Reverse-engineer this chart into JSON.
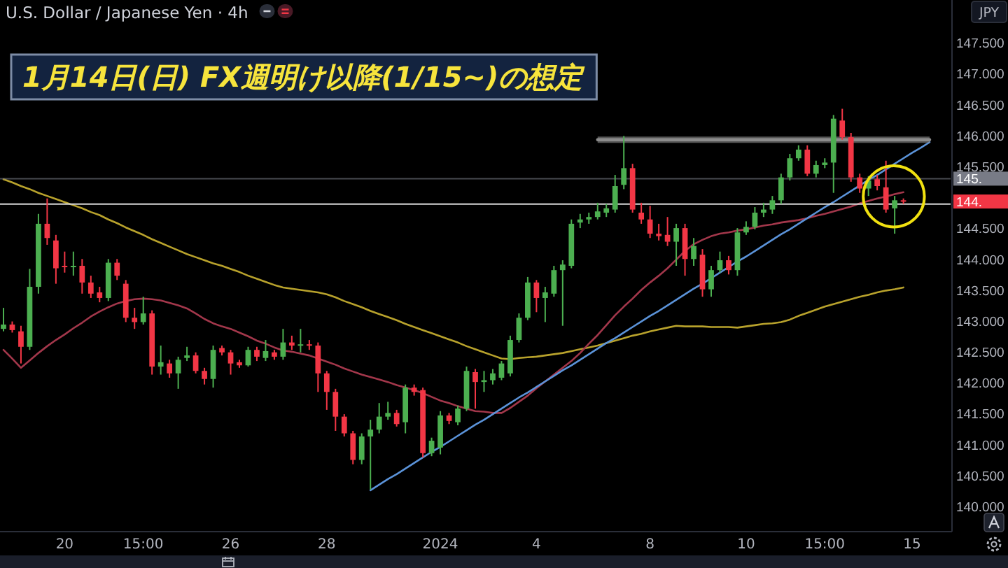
{
  "chart_data": {
    "type": "candlestick",
    "title": "1月14日(日) FX週明け以降(1/15~)の想定",
    "subtitle": "U.S. Dollar / Japanese Yen · 4h",
    "ylabel": "JPY",
    "categories": [
      null,
      null,
      null,
      null,
      null,
      null,
      null,
      "20",
      null,
      null,
      null,
      null,
      null,
      null,
      null,
      null,
      "15:00",
      null,
      null,
      null,
      null,
      null,
      null,
      null,
      null,
      null,
      "26",
      null,
      null,
      null,
      null,
      null,
      null,
      null,
      null,
      null,
      null,
      "28",
      null,
      null,
      null,
      null,
      null,
      null,
      null,
      null,
      null,
      null,
      null,
      null,
      "2024",
      null,
      null,
      null,
      null,
      null,
      null,
      null,
      null,
      null,
      null,
      "4",
      null,
      null,
      null,
      null,
      null,
      null,
      null,
      null,
      null,
      null,
      null,
      null,
      "8",
      null,
      null,
      null,
      null,
      null,
      null,
      null,
      null,
      null,
      null,
      "10",
      null,
      null,
      null,
      null,
      null,
      null,
      null,
      null,
      "15:00",
      null,
      null,
      null,
      null,
      null,
      null,
      null,
      null,
      null,
      "15",
      null,
      null,
      null,
      null
    ],
    "ohlc": [
      [
        142.88,
        143.22,
        142.84,
        142.95
      ],
      [
        142.95,
        143.0,
        142.82,
        142.86
      ],
      [
        142.84,
        142.93,
        142.32,
        142.59
      ],
      [
        142.59,
        143.85,
        142.54,
        143.56
      ],
      [
        143.56,
        144.74,
        143.45,
        144.58
      ],
      [
        144.58,
        144.99,
        144.24,
        144.35
      ],
      [
        144.31,
        144.4,
        143.61,
        143.86
      ],
      [
        143.9,
        144.13,
        143.79,
        143.88
      ],
      [
        143.88,
        144.13,
        143.74,
        143.9
      ],
      [
        143.9,
        144.01,
        143.45,
        143.63
      ],
      [
        143.63,
        143.74,
        143.38,
        143.45
      ],
      [
        143.47,
        143.56,
        143.31,
        143.38
      ],
      [
        143.38,
        144.01,
        143.33,
        143.95
      ],
      [
        143.95,
        144.01,
        143.67,
        143.74
      ],
      [
        143.61,
        143.67,
        142.99,
        143.06
      ],
      [
        143.06,
        143.22,
        142.88,
        142.99
      ],
      [
        142.99,
        143.4,
        142.95,
        143.13
      ],
      [
        143.13,
        143.18,
        142.14,
        142.27
      ],
      [
        142.27,
        142.61,
        142.14,
        142.34
      ],
      [
        142.32,
        142.38,
        142.09,
        142.16
      ],
      [
        142.16,
        142.43,
        141.91,
        142.38
      ],
      [
        142.41,
        142.59,
        142.36,
        142.45
      ],
      [
        142.45,
        142.5,
        142.16,
        142.2
      ],
      [
        142.2,
        142.25,
        141.98,
        142.07
      ],
      [
        142.07,
        142.61,
        141.93,
        142.54
      ],
      [
        142.57,
        142.61,
        142.45,
        142.5
      ],
      [
        142.5,
        142.54,
        142.14,
        142.32
      ],
      [
        142.34,
        142.38,
        142.25,
        142.29
      ],
      [
        142.29,
        142.59,
        142.27,
        142.54
      ],
      [
        142.54,
        142.59,
        142.36,
        142.43
      ],
      [
        142.41,
        142.7,
        142.36,
        142.52
      ],
      [
        142.5,
        142.54,
        142.38,
        142.43
      ],
      [
        142.43,
        142.88,
        142.38,
        142.66
      ],
      [
        142.66,
        142.77,
        142.54,
        142.61
      ],
      [
        142.61,
        142.88,
        142.5,
        142.63
      ],
      [
        142.63,
        142.7,
        142.54,
        142.61
      ],
      [
        142.61,
        142.66,
        141.86,
        142.16
      ],
      [
        142.16,
        142.2,
        141.57,
        141.86
      ],
      [
        141.86,
        141.91,
        141.23,
        141.46
      ],
      [
        141.46,
        141.5,
        141.14,
        141.19
      ],
      [
        141.19,
        141.23,
        140.69,
        140.76
      ],
      [
        140.76,
        141.19,
        140.69,
        141.14
      ],
      [
        141.14,
        141.41,
        140.28,
        141.25
      ],
      [
        141.25,
        141.68,
        141.19,
        141.46
      ],
      [
        141.46,
        141.7,
        141.41,
        141.52
      ],
      [
        141.52,
        141.57,
        141.3,
        141.34
      ],
      [
        141.37,
        141.98,
        141.19,
        141.93
      ],
      [
        141.93,
        141.98,
        141.8,
        141.86
      ],
      [
        141.89,
        141.93,
        140.8,
        140.87
      ],
      [
        140.87,
        141.12,
        140.82,
        141.07
      ],
      [
        140.96,
        141.55,
        140.85,
        141.48
      ],
      [
        141.48,
        141.52,
        141.34,
        141.39
      ],
      [
        141.37,
        141.64,
        141.32,
        141.59
      ],
      [
        141.59,
        142.27,
        141.55,
        142.2
      ],
      [
        142.18,
        142.23,
        141.59,
        142.02
      ],
      [
        142.02,
        142.2,
        141.86,
        142.05
      ],
      [
        142.05,
        142.23,
        141.98,
        142.16
      ],
      [
        142.09,
        142.36,
        142.05,
        142.32
      ],
      [
        142.16,
        142.77,
        142.11,
        142.7
      ],
      [
        142.7,
        143.13,
        142.66,
        143.06
      ],
      [
        143.06,
        143.72,
        143.02,
        143.63
      ],
      [
        143.63,
        143.67,
        143.15,
        143.38
      ],
      [
        143.38,
        143.56,
        142.99,
        143.47
      ],
      [
        143.45,
        143.9,
        143.4,
        143.83
      ],
      [
        143.83,
        143.99,
        142.93,
        143.92
      ],
      [
        143.9,
        144.65,
        143.86,
        144.58
      ],
      [
        144.6,
        144.74,
        144.51,
        144.65
      ],
      [
        144.65,
        144.76,
        144.58,
        144.69
      ],
      [
        144.69,
        144.92,
        144.65,
        144.78
      ],
      [
        144.76,
        144.9,
        144.69,
        144.83
      ],
      [
        144.81,
        145.37,
        144.76,
        145.19
      ],
      [
        145.21,
        146.0,
        145.14,
        145.48
      ],
      [
        145.48,
        145.55,
        144.76,
        144.81
      ],
      [
        144.76,
        144.92,
        144.58,
        144.65
      ],
      [
        144.65,
        144.87,
        144.35,
        144.42
      ],
      [
        144.42,
        144.58,
        144.31,
        144.38
      ],
      [
        144.4,
        144.69,
        144.22,
        144.29
      ],
      [
        144.29,
        144.58,
        143.9,
        144.51
      ],
      [
        144.51,
        144.58,
        143.74,
        144.01
      ],
      [
        144.01,
        144.35,
        143.9,
        144.22
      ],
      [
        144.08,
        144.17,
        143.4,
        143.52
      ],
      [
        143.52,
        143.9,
        143.4,
        143.83
      ],
      [
        143.83,
        144.13,
        143.79,
        143.99
      ],
      [
        143.99,
        144.06,
        143.76,
        143.83
      ],
      [
        143.83,
        144.51,
        143.74,
        144.44
      ],
      [
        144.44,
        144.62,
        144.4,
        144.53
      ],
      [
        144.53,
        144.85,
        144.49,
        144.76
      ],
      [
        144.76,
        144.92,
        144.69,
        144.81
      ],
      [
        144.81,
        145.03,
        144.74,
        144.96
      ],
      [
        144.96,
        145.39,
        144.9,
        145.33
      ],
      [
        145.33,
        145.71,
        145.28,
        145.64
      ],
      [
        145.64,
        145.85,
        145.6,
        145.78
      ],
      [
        145.78,
        145.85,
        145.35,
        145.39
      ],
      [
        145.39,
        145.6,
        145.33,
        145.53
      ],
      [
        145.53,
        145.64,
        145.48,
        145.57
      ],
      [
        145.57,
        146.34,
        145.08,
        146.28
      ],
      [
        146.25,
        146.44,
        145.94,
        145.98
      ],
      [
        145.98,
        146.05,
        145.26,
        145.33
      ],
      [
        145.33,
        145.39,
        145.08,
        145.15
      ],
      [
        145.15,
        145.35,
        145.03,
        145.28
      ],
      [
        145.3,
        145.37,
        145.12,
        145.19
      ],
      [
        145.17,
        145.6,
        144.76,
        144.81
      ],
      [
        144.83,
        145.03,
        144.42,
        144.96
      ],
      [
        144.96,
        144.99,
        144.9,
        144.94
      ],
      null,
      null,
      null,
      null,
      null
    ],
    "colors": [
      "#4caf50",
      "#f23645",
      "#f23645",
      "#4caf50",
      "#4caf50",
      "#f23645",
      "#f23645",
      "#f23645",
      "#4caf50",
      "#f23645",
      "#f23645",
      "#f23645",
      "#4caf50",
      "#f23645",
      "#f23645",
      "#f23645",
      "#4caf50",
      "#f23645",
      "#4caf50",
      "#f23645",
      "#4caf50",
      "#4caf50",
      "#f23645",
      "#f23645",
      "#4caf50",
      "#f23645",
      "#f23645",
      "#f23645",
      "#4caf50",
      "#f23645",
      "#4caf50",
      "#f23645",
      "#4caf50",
      "#f23645",
      "#4caf50",
      "#f23645",
      "#f23645",
      "#f23645",
      "#f23645",
      "#f23645",
      "#f23645",
      "#4caf50",
      "#4caf50",
      "#4caf50",
      "#4caf50",
      "#f23645",
      "#4caf50",
      "#f23645",
      "#f23645",
      "#4caf50",
      "#4caf50",
      "#f23645",
      "#4caf50",
      "#4caf50",
      "#f23645",
      "#4caf50",
      "#4caf50",
      "#4caf50",
      "#4caf50",
      "#4caf50",
      "#4caf50",
      "#f23645",
      "#4caf50",
      "#4caf50",
      "#4caf50",
      "#4caf50",
      "#4caf50",
      "#4caf50",
      "#4caf50",
      "#4caf50",
      "#4caf50",
      "#4caf50",
      "#f23645",
      "#f23645",
      "#f23645",
      "#f23645",
      "#f23645",
      "#4caf50",
      "#f23645",
      "#4caf50",
      "#f23645",
      "#4caf50",
      "#4caf50",
      "#f23645",
      "#4caf50",
      "#4caf50",
      "#4caf50",
      "#4caf50",
      "#4caf50",
      "#4caf50",
      "#4caf50",
      "#4caf50",
      "#f23645",
      "#4caf50",
      "#4caf50",
      "#4caf50",
      "#f23645",
      "#f23645",
      "#f23645",
      "#4caf50",
      "#f23645",
      "#f23645",
      "#4caf50",
      "#f23645",
      null,
      null,
      null,
      null,
      null
    ],
    "series": [
      {
        "type": "line",
        "color": "#b8a22c",
        "values": [
          145.3,
          145.25,
          145.19,
          145.14,
          145.08,
          145.03,
          144.98,
          144.93,
          144.88,
          144.83,
          144.77,
          144.72,
          144.65,
          144.59,
          144.52,
          144.46,
          144.4,
          144.33,
          144.27,
          144.21,
          144.15,
          144.09,
          144.04,
          143.99,
          143.94,
          143.9,
          143.85,
          143.8,
          143.74,
          143.69,
          143.64,
          143.59,
          143.55,
          143.53,
          143.51,
          143.49,
          143.47,
          143.44,
          143.39,
          143.33,
          143.28,
          143.23,
          143.17,
          143.12,
          143.07,
          143.02,
          142.96,
          142.91,
          142.86,
          142.81,
          142.76,
          142.71,
          142.66,
          142.6,
          142.55,
          142.5,
          142.45,
          142.4,
          142.39,
          142.41,
          142.42,
          142.43,
          142.45,
          142.47,
          142.49,
          142.52,
          142.55,
          142.58,
          142.61,
          142.65,
          142.69,
          142.73,
          142.77,
          142.8,
          142.84,
          142.87,
          142.9,
          142.93,
          142.92,
          142.92,
          142.92,
          142.91,
          142.91,
          142.91,
          142.9,
          142.92,
          142.94,
          142.96,
          142.97,
          142.99,
          143.03,
          143.09,
          143.14,
          143.19,
          143.24,
          143.28,
          143.32,
          143.36,
          143.4,
          143.43,
          143.47,
          143.5,
          143.52,
          143.55,
          null,
          null,
          null,
          null,
          null
        ]
      },
      {
        "type": "line",
        "color": "#a3374b",
        "values": [
          142.54,
          142.4,
          142.25,
          142.37,
          142.49,
          142.6,
          142.7,
          142.79,
          142.89,
          142.98,
          143.08,
          143.16,
          143.23,
          143.29,
          143.33,
          143.36,
          143.37,
          143.36,
          143.34,
          143.3,
          143.26,
          143.21,
          143.13,
          143.04,
          142.97,
          142.92,
          142.88,
          142.82,
          142.76,
          142.69,
          142.64,
          142.58,
          142.53,
          142.51,
          142.48,
          142.45,
          142.4,
          142.35,
          142.3,
          142.24,
          142.19,
          142.14,
          142.1,
          142.06,
          142.02,
          141.97,
          141.93,
          141.89,
          141.84,
          141.78,
          141.72,
          141.68,
          141.63,
          141.59,
          141.55,
          141.54,
          141.52,
          141.52,
          141.6,
          141.7,
          141.8,
          141.92,
          142.03,
          142.14,
          142.25,
          142.36,
          142.49,
          142.64,
          142.78,
          142.94,
          143.1,
          143.24,
          143.37,
          143.51,
          143.63,
          143.74,
          143.86,
          144.0,
          144.14,
          144.25,
          144.32,
          144.38,
          144.42,
          144.44,
          144.47,
          144.49,
          144.52,
          144.55,
          144.57,
          144.6,
          144.62,
          144.64,
          144.67,
          144.71,
          144.74,
          144.78,
          144.82,
          144.86,
          144.91,
          144.95,
          144.99,
          145.02,
          145.06,
          145.09,
          null,
          null,
          null,
          null,
          null
        ]
      },
      {
        "type": "line",
        "color": "#5b93d9",
        "values": [
          null,
          null,
          null,
          null,
          null,
          null,
          null,
          null,
          null,
          null,
          null,
          null,
          null,
          null,
          null,
          null,
          null,
          null,
          null,
          null,
          null,
          null,
          null,
          null,
          null,
          null,
          null,
          null,
          null,
          null,
          null,
          null,
          null,
          null,
          null,
          null,
          null,
          null,
          null,
          null,
          null,
          null,
          140.27,
          140.36,
          140.45,
          140.53,
          140.62,
          140.71,
          140.8,
          140.89,
          140.97,
          141.06,
          141.15,
          141.24,
          141.33,
          141.41,
          141.5,
          141.59,
          141.68,
          141.77,
          141.85,
          141.94,
          142.03,
          142.12,
          142.21,
          142.29,
          142.38,
          142.47,
          142.56,
          142.65,
          142.73,
          142.82,
          142.91,
          143.0,
          143.09,
          143.17,
          143.26,
          143.35,
          143.44,
          143.53,
          143.61,
          143.7,
          143.79,
          143.88,
          143.97,
          144.05,
          144.14,
          144.23,
          144.32,
          144.41,
          144.49,
          144.58,
          144.67,
          144.76,
          144.85,
          144.93,
          145.02,
          145.11,
          145.2,
          145.29,
          145.37,
          145.46,
          145.55,
          145.64,
          145.73,
          145.81,
          145.9,
          null,
          null
        ]
      },
      {
        "type": "line",
        "color": "#8c8c8c",
        "values": [
          null,
          null,
          null,
          null,
          null,
          null,
          null,
          null,
          null,
          null,
          null,
          null,
          null,
          null,
          null,
          null,
          null,
          null,
          null,
          null,
          null,
          null,
          null,
          null,
          null,
          null,
          null,
          null,
          null,
          null,
          null,
          null,
          null,
          null,
          null,
          null,
          null,
          null,
          null,
          null,
          null,
          null,
          null,
          null,
          null,
          null,
          null,
          null,
          null,
          null,
          null,
          null,
          null,
          null,
          null,
          null,
          null,
          null,
          null,
          null,
          null,
          null,
          null,
          null,
          null,
          null,
          null,
          null,
          145.94,
          145.94,
          145.94,
          145.94,
          145.94,
          145.94,
          145.94,
          145.94,
          145.94,
          145.94,
          145.94,
          145.94,
          145.94,
          145.94,
          145.94,
          145.94,
          145.94,
          145.94,
          145.94,
          145.94,
          145.94,
          145.94,
          145.94,
          145.94,
          145.94,
          145.94,
          145.94,
          145.94,
          145.94,
          145.94,
          145.94,
          145.94,
          145.94,
          145.94,
          145.94,
          145.94,
          145.94,
          145.94,
          145.94,
          null,
          null
        ],
        "lower": [
          null,
          null,
          null,
          null,
          null,
          null,
          null,
          null,
          null,
          null,
          null,
          null,
          null,
          null,
          null,
          null,
          null,
          null,
          null,
          null,
          null,
          null,
          null,
          null,
          null,
          null,
          null,
          null,
          null,
          null,
          null,
          null,
          null,
          null,
          null,
          null,
          null,
          null,
          null,
          null,
          null,
          null,
          null,
          null,
          null,
          null,
          null,
          null,
          null,
          null,
          null,
          null,
          null,
          null,
          null,
          null,
          null,
          null,
          null,
          null,
          null,
          null,
          null,
          null,
          null,
          null,
          null,
          null,
          145.89,
          145.89,
          145.89,
          145.89,
          145.89,
          145.89,
          145.89,
          145.89,
          145.89,
          145.89,
          145.89,
          145.89,
          145.89,
          145.89,
          145.89,
          145.89,
          145.89,
          145.89,
          145.89,
          145.89,
          145.89,
          145.89,
          145.89,
          145.89,
          145.89,
          145.89,
          145.89,
          145.89,
          145.89,
          145.89,
          145.89,
          145.89,
          145.89,
          145.89,
          145.89,
          145.89,
          145.89,
          145.89,
          145.89,
          null,
          null
        ],
        "upper": [
          null,
          null,
          null,
          null,
          null,
          null,
          null,
          null,
          null,
          null,
          null,
          null,
          null,
          null,
          null,
          null,
          null,
          null,
          null,
          null,
          null,
          null,
          null,
          null,
          null,
          null,
          null,
          null,
          null,
          null,
          null,
          null,
          null,
          null,
          null,
          null,
          null,
          null,
          null,
          null,
          null,
          null,
          null,
          null,
          null,
          null,
          null,
          null,
          null,
          null,
          null,
          null,
          null,
          null,
          null,
          null,
          null,
          null,
          null,
          null,
          null,
          null,
          null,
          null,
          null,
          null,
          null,
          null,
          145.99,
          145.99,
          145.99,
          145.99,
          145.99,
          145.99,
          145.99,
          145.99,
          145.99,
          145.99,
          145.99,
          145.99,
          145.99,
          145.99,
          145.99,
          145.99,
          145.99,
          145.99,
          145.99,
          145.99,
          145.99,
          145.99,
          145.99,
          145.99,
          145.99,
          145.99,
          145.99,
          145.99,
          145.99,
          145.99,
          145.99,
          145.99,
          145.99,
          145.99,
          145.99,
          145.99,
          145.99,
          145.99,
          145.99,
          null,
          null
        ]
      }
    ],
    "ylim": [
      139.6,
      148.2
    ],
    "yticks": [
      {
        "value": 140,
        "label": "140.000"
      },
      {
        "value": 140.5,
        "label": "140.500"
      },
      {
        "value": 141,
        "label": "141.000"
      },
      {
        "value": 141.5,
        "label": "141.500"
      },
      {
        "value": 142,
        "label": "142.000"
      },
      {
        "value": 142.5,
        "label": "142.500"
      },
      {
        "value": 143,
        "label": "143.000"
      },
      {
        "value": 143.5,
        "label": "143.500"
      },
      {
        "value": 144,
        "label": "144.000"
      },
      {
        "value": 144.5,
        "label": "144.500"
      },
      {
        "value": 145.5,
        "label": "145.500"
      },
      {
        "value": 146,
        "label": "146.000"
      },
      {
        "value": 146.5,
        "label": "146.500"
      },
      {
        "value": 147,
        "label": "147.000"
      },
      {
        "value": 147.5,
        "label": "147.500"
      }
    ],
    "ref_lines": [
      {
        "axis": "y",
        "value": 145.31,
        "label": "145.",
        "color": "#787b86"
      },
      {
        "axis": "y",
        "value": 144.9,
        "color": "#d9d9d9"
      }
    ],
    "annotations": [
      "144."
    ]
  }
}
